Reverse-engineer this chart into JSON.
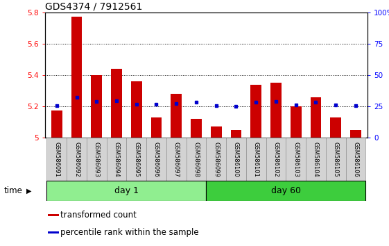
{
  "title": "GDS4374 / 7912561",
  "samples": [
    "GSM586091",
    "GSM586092",
    "GSM586093",
    "GSM586094",
    "GSM586095",
    "GSM586096",
    "GSM586097",
    "GSM586098",
    "GSM586099",
    "GSM586100",
    "GSM586101",
    "GSM586102",
    "GSM586103",
    "GSM586104",
    "GSM586105",
    "GSM586106"
  ],
  "red_values": [
    5.175,
    5.77,
    5.4,
    5.44,
    5.36,
    5.13,
    5.28,
    5.12,
    5.07,
    5.05,
    5.34,
    5.35,
    5.2,
    5.26,
    5.13,
    5.05
  ],
  "blue_values": [
    5.205,
    5.26,
    5.23,
    5.235,
    5.215,
    5.215,
    5.22,
    5.225,
    5.205,
    5.2,
    5.225,
    5.23,
    5.21,
    5.225,
    5.21,
    5.205
  ],
  "ylim": [
    5.0,
    5.8
  ],
  "ylim_right": [
    0,
    100
  ],
  "yticks_left": [
    5.0,
    5.2,
    5.4,
    5.6,
    5.8
  ],
  "yticks_right": [
    0,
    25,
    50,
    75,
    100
  ],
  "ytick_labels_left": [
    "5",
    "5.2",
    "5.4",
    "5.6",
    "5.8"
  ],
  "ytick_labels_right": [
    "0",
    "25",
    "50",
    "75",
    "100%"
  ],
  "groups": [
    {
      "label": "day 1",
      "start": 0,
      "end": 8,
      "color": "#90ee90"
    },
    {
      "label": "day 60",
      "start": 8,
      "end": 16,
      "color": "#3dcd3d"
    }
  ],
  "bar_color": "#cc0000",
  "dot_color": "#0000cc",
  "bar_width": 0.55,
  "background_color": "#ffffff",
  "plot_bg_color": "#ffffff",
  "tick_label_bg": "#d3d3d3",
  "legend_items": [
    {
      "color": "#cc0000",
      "label": "transformed count"
    },
    {
      "color": "#0000cc",
      "label": "percentile rank within the sample"
    }
  ],
  "time_label": "time",
  "title_fontsize": 10,
  "tick_fontsize": 7.5,
  "legend_fontsize": 8.5,
  "sample_fontsize": 6,
  "group_fontsize": 9
}
